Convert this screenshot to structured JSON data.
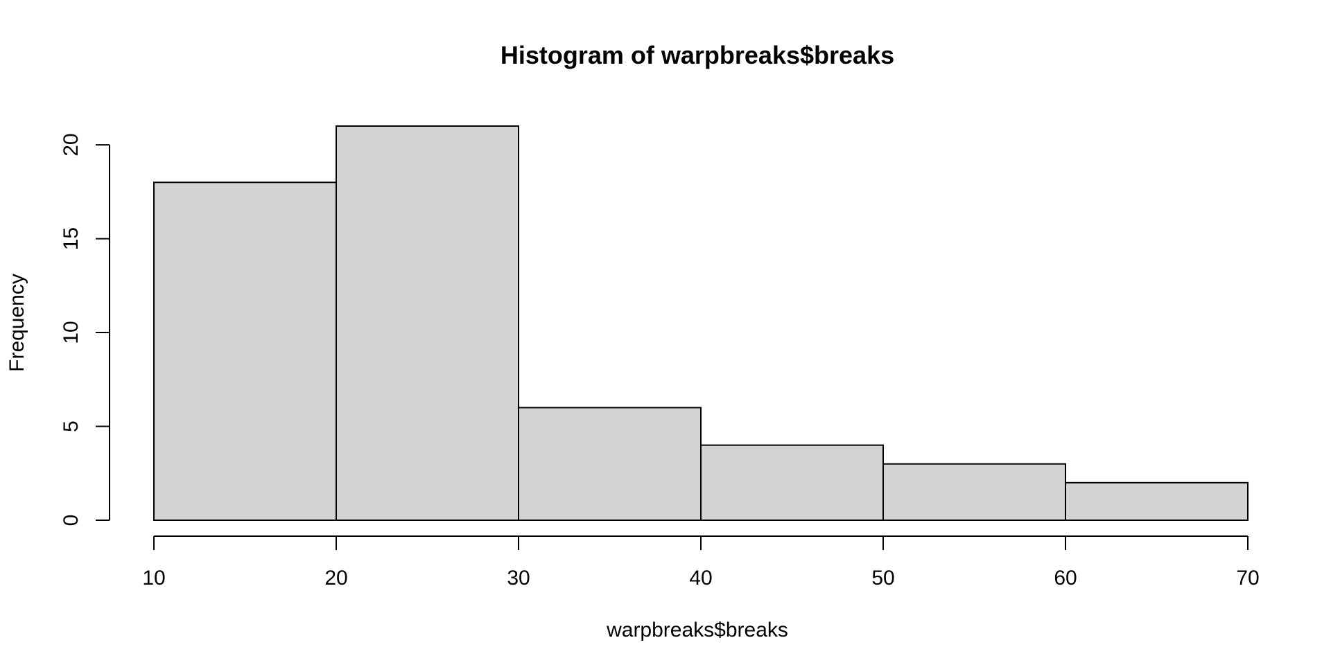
{
  "chart_data": {
    "type": "bar",
    "histogram": true,
    "title": "Histogram of warpbreaks$breaks",
    "xlabel": "warpbreaks$breaks",
    "ylabel": "Frequency",
    "bins": [
      {
        "start": 10,
        "end": 20,
        "value": 18
      },
      {
        "start": 20,
        "end": 30,
        "value": 21
      },
      {
        "start": 30,
        "end": 40,
        "value": 6
      },
      {
        "start": 40,
        "end": 50,
        "value": 4
      },
      {
        "start": 50,
        "end": 60,
        "value": 3
      },
      {
        "start": 60,
        "end": 70,
        "value": 2
      }
    ],
    "xlim": [
      10,
      70
    ],
    "ylim": [
      0,
      21
    ],
    "x_ticks": [
      10,
      20,
      30,
      40,
      50,
      60,
      70
    ],
    "y_ticks": [
      0,
      5,
      10,
      15,
      20
    ],
    "grid": false,
    "bar_color": "#d3d3d3",
    "edge_color": "#000000"
  }
}
